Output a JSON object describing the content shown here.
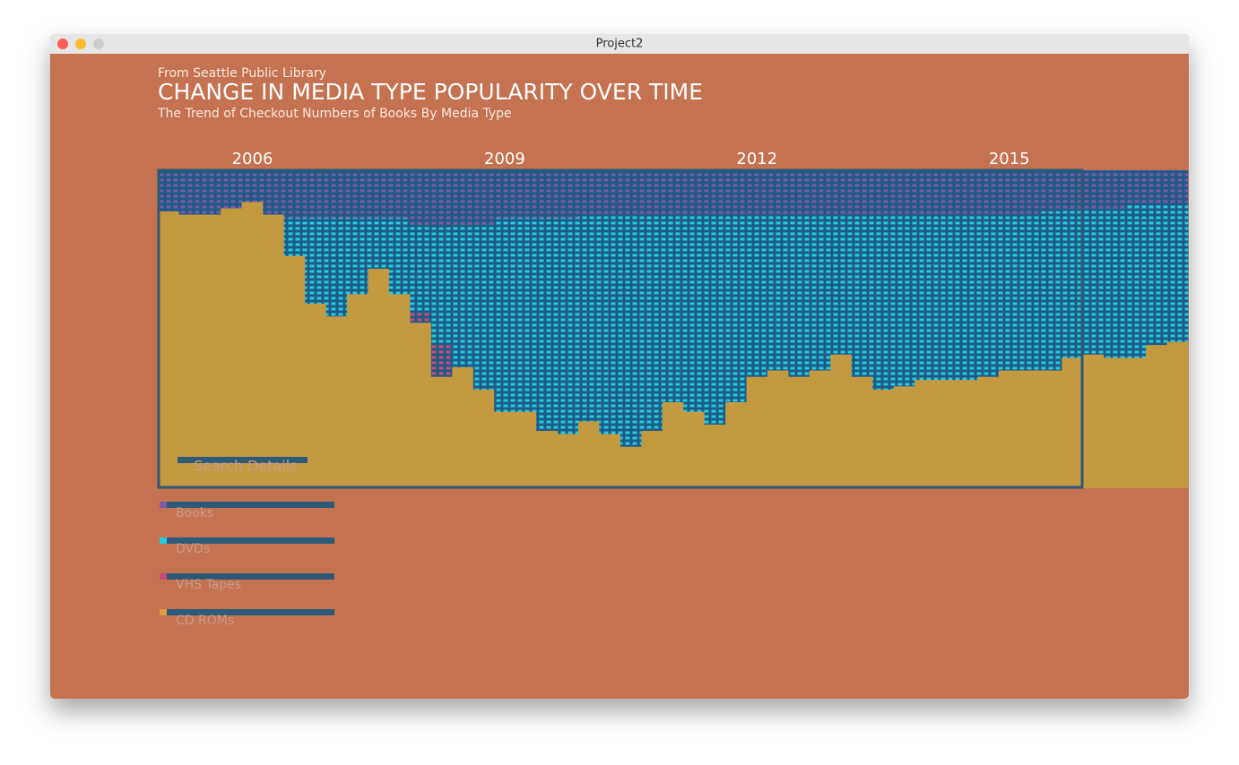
{
  "window": {
    "title": "Project2"
  },
  "controls": {
    "search": "Search Details"
  },
  "chart_data": {
    "type": "stacked-share-bar",
    "supertitle": "From Seattle Public Library",
    "title": "CHANGE IN MEDIA TYPE POPULARITY OVER TIME",
    "subtitle": "The Trend of Checkout Numbers of Books By Media Type",
    "categories": [
      null,
      null,
      null,
      null,
      "2006",
      null,
      null,
      null,
      null,
      null,
      null,
      null,
      null,
      null,
      null,
      null,
      "2009",
      null,
      null,
      null,
      null,
      null,
      null,
      null,
      null,
      null,
      null,
      null,
      "2012",
      null,
      null,
      null,
      null,
      null,
      null,
      null,
      null,
      null,
      null,
      null,
      "2015",
      null,
      null,
      null,
      null,
      null,
      null,
      null,
      null
    ],
    "series": [
      {
        "name": "Books",
        "color": "#7a5aa6",
        "values": [
          13,
          14,
          14,
          12,
          10,
          14,
          15,
          15,
          15,
          15,
          15,
          15,
          17,
          18,
          17,
          17,
          15,
          15,
          15,
          15,
          14,
          14,
          14,
          14,
          14,
          14,
          14,
          14,
          14,
          14,
          14,
          14,
          14,
          14,
          14,
          14,
          14,
          14,
          14,
          14,
          14,
          14,
          13,
          12,
          12,
          12,
          11,
          11,
          11
        ]
      },
      {
        "name": "DVDs",
        "color": "#22cbe0",
        "values": [
          0,
          0,
          0,
          0,
          0,
          0,
          12,
          27,
          31,
          24,
          16,
          24,
          28,
          37,
          45,
          52,
          61,
          61,
          67,
          68,
          65,
          69,
          73,
          68,
          59,
          62,
          66,
          59,
          51,
          49,
          51,
          49,
          44,
          51,
          55,
          54,
          52,
          52,
          52,
          51,
          49,
          49,
          50,
          47,
          46,
          47,
          48,
          44,
          43
        ]
      },
      {
        "name": "VHS Tapes",
        "color": "#c94a78",
        "values": [
          0,
          0,
          0,
          0,
          0,
          0,
          0,
          0,
          0,
          0,
          0,
          0,
          3,
          10,
          0,
          0,
          0,
          0,
          0,
          0,
          0,
          0,
          0,
          0,
          0,
          0,
          0,
          0,
          0,
          0,
          0,
          0,
          0,
          0,
          0,
          0,
          0,
          0,
          0,
          0,
          0,
          0,
          0,
          0,
          0,
          0,
          0,
          0,
          0
        ]
      },
      {
        "name": "CD ROMs",
        "color": "#e39a45",
        "values": [
          87,
          86,
          86,
          88,
          90,
          86,
          73,
          58,
          54,
          61,
          69,
          61,
          52,
          35,
          38,
          31,
          24,
          24,
          18,
          17,
          21,
          17,
          13,
          18,
          27,
          24,
          20,
          27,
          35,
          37,
          35,
          37,
          42,
          35,
          31,
          32,
          34,
          34,
          34,
          35,
          37,
          37,
          37,
          41,
          42,
          41,
          41,
          45,
          46
        ]
      }
    ]
  }
}
